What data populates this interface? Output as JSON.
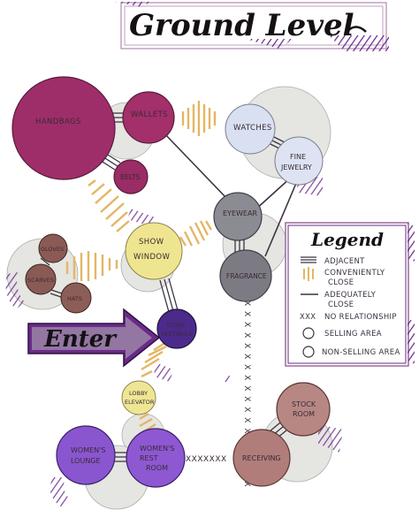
{
  "title": "Ground Level",
  "enter_label": "Enter",
  "colors": {
    "handbags": "#9e2e6a",
    "wallets": "#a32f6b",
    "belts": "#9a2c66",
    "watches": "#d9e0f2",
    "fine_jewelry": "#dde3f3",
    "eyewear": "#8b8b93",
    "fragrance": "#7c7b84",
    "show_window": "#efe590",
    "gloves": "#8b5a54",
    "scarves": "#8a5a54",
    "hats": "#8d5d57",
    "store_vestibule": "#4c2a8c",
    "lobby_elevator": "#efe694",
    "womens_lounge": "#8a56cf",
    "womens_restroom": "#8d58d2",
    "stock_room": "#b78784",
    "receiving": "#b07d7b",
    "purple_accent": "#6a2a8a"
  },
  "spaces": [
    {
      "key": "handbags",
      "label": "HANDBAGS"
    },
    {
      "key": "wallets",
      "label": "WALLETS"
    },
    {
      "key": "belts",
      "label": "BELTS"
    },
    {
      "key": "watches",
      "label": "WATCHES"
    },
    {
      "key": "fine_jewelry",
      "label_line1": "FINE",
      "label_line2": "JEWELRY"
    },
    {
      "key": "eyewear",
      "label": "EYEWEAR"
    },
    {
      "key": "fragrance",
      "label": "FRAGRANCE"
    },
    {
      "key": "show_window",
      "label_line1": "SHOW",
      "label_line2": "WINDOW"
    },
    {
      "key": "gloves",
      "label": "GLOVES"
    },
    {
      "key": "scarves",
      "label": "SCARVES"
    },
    {
      "key": "hats",
      "label": "HATS"
    },
    {
      "key": "store_vestibule",
      "label_line1": "STORE",
      "label_line2": "VESTIBULE"
    },
    {
      "key": "lobby_elevator",
      "label_line1": "LOBBY",
      "label_line2": "ELEVATOR"
    },
    {
      "key": "womens_lounge",
      "label_line1": "WOMEN'S",
      "label_line2": "LOUNGE"
    },
    {
      "key": "womens_restroom",
      "label_line1": "WOMEN'S",
      "label_line2": "REST",
      "label_line3": "ROOM"
    },
    {
      "key": "stock_room",
      "label_line1": "STOCK",
      "label_line2": "ROOM"
    },
    {
      "key": "receiving",
      "label": "RECEIVING"
    }
  ],
  "no_relationship_marks": {
    "vertical": "X X X X X X X X X X X X X X X X X X",
    "horizontal": "XXXXXXX"
  },
  "legend": {
    "title": "Legend",
    "adjacent": "ADJACENT",
    "conveniently_close_line1": "CONVENIENTLY",
    "conveniently_close_line2": "CLOSE",
    "adequately_close_line1": "ADEQUATELY",
    "adequately_close_line2": "CLOSE",
    "no_relationship_marker": "XXX",
    "no_relationship": "NO RELATIONSHIP",
    "selling_area": "SELLING AREA",
    "non_selling_area": "NON-SELLING AREA"
  }
}
